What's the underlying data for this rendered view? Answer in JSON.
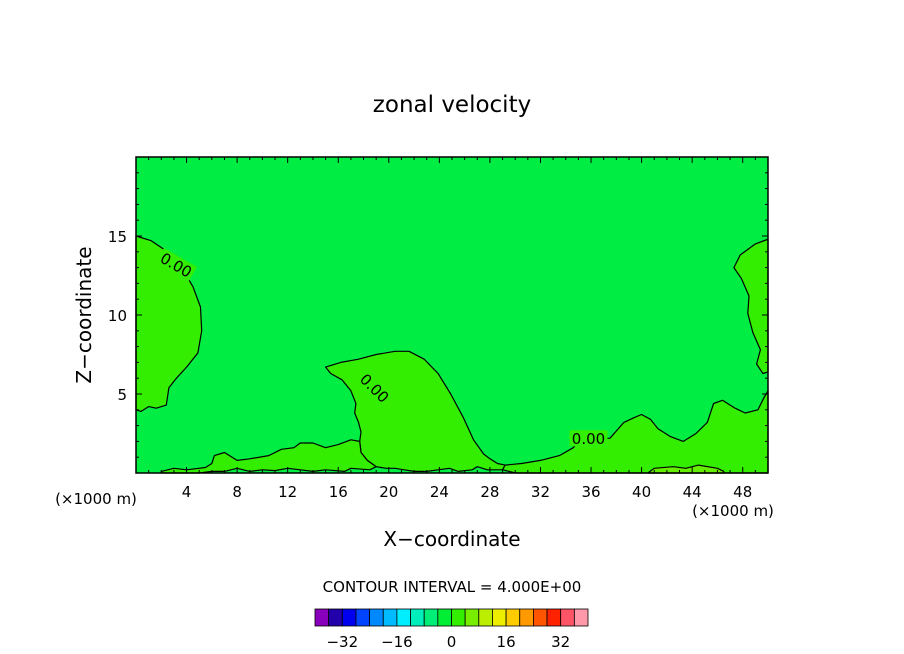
{
  "chart_data": {
    "type": "heatmap",
    "title": "zonal velocity",
    "xlabel": "X−coordinate",
    "ylabel": "Z−coordinate",
    "x_unit_left": "(×1000 m)",
    "x_unit_right": "(×1000 m)",
    "xlim": [
      0,
      50
    ],
    "ylim": [
      0,
      20
    ],
    "x_ticks": [
      4,
      8,
      12,
      16,
      20,
      24,
      28,
      32,
      36,
      40,
      44,
      48
    ],
    "y_ticks": [
      5,
      10,
      15
    ],
    "contour_interval_text": "CONTOUR INTERVAL = 4.000E+00",
    "contour_labels": [
      {
        "text": "0.00",
        "x": 3.2,
        "y": 13.2,
        "angle": 30
      },
      {
        "text": "0.00",
        "x": 18.9,
        "y": 5.4,
        "angle": 45
      },
      {
        "text": "0.00",
        "x": 35.8,
        "y": 2.2,
        "angle": 0
      }
    ],
    "background_color": "#00ee44",
    "positive_region_color": "#33ee00",
    "light_region_color": "#66ee00",
    "colorbar": {
      "levels": [
        -36,
        -32,
        -28,
        -24,
        -20,
        -16,
        -12,
        -8,
        -4,
        0,
        4,
        8,
        12,
        16,
        20,
        24,
        28,
        32,
        36
      ],
      "colors": [
        "#8800bb",
        "#2200aa",
        "#0000ee",
        "#0044ff",
        "#0088ff",
        "#00bbff",
        "#00eeff",
        "#00eebb",
        "#00ee77",
        "#00ee33",
        "#33ee00",
        "#77ee00",
        "#bbee00",
        "#eeee00",
        "#ffcc00",
        "#ff9900",
        "#ff5500",
        "#ff2200",
        "#ff5566",
        "#ff99aa"
      ],
      "tick_labels": [
        "-32",
        "-16",
        "0",
        "16",
        "32"
      ],
      "tick_values": [
        -32,
        -16,
        0,
        16,
        32
      ]
    },
    "regions": [
      {
        "name": "left positive region (0 contour)",
        "points": [
          [
            0,
            15.0
          ],
          [
            1.2,
            14.7
          ],
          [
            2.5,
            14.0
          ],
          [
            3.6,
            13.0
          ],
          [
            4.5,
            11.8
          ],
          [
            5.1,
            10.5
          ],
          [
            5.2,
            9.0
          ],
          [
            4.9,
            7.6
          ],
          [
            4.0,
            6.7
          ],
          [
            3.2,
            6.0
          ],
          [
            2.6,
            5.4
          ],
          [
            2.4,
            4.3
          ],
          [
            1.6,
            4.1
          ],
          [
            1.0,
            4.2
          ],
          [
            0.4,
            3.9
          ],
          [
            0,
            4.0
          ]
        ]
      },
      {
        "name": "central positive region (0 contour)",
        "points": [
          [
            15.0,
            6.7
          ],
          [
            16.2,
            7.0
          ],
          [
            17.6,
            7.2
          ],
          [
            19.0,
            7.5
          ],
          [
            20.5,
            7.7
          ],
          [
            21.6,
            7.7
          ],
          [
            22.8,
            7.2
          ],
          [
            23.9,
            6.3
          ],
          [
            24.9,
            5.0
          ],
          [
            25.9,
            3.5
          ],
          [
            26.7,
            2.1
          ],
          [
            27.5,
            1.2
          ],
          [
            28.0,
            0.9
          ],
          [
            28.6,
            0.6
          ],
          [
            29.2,
            0.5
          ],
          [
            29.0,
            0.2
          ],
          [
            27.8,
            0.2
          ],
          [
            27.0,
            0.4
          ],
          [
            26.6,
            0.2
          ],
          [
            25.5,
            0.1
          ],
          [
            24.8,
            0.3
          ],
          [
            23.0,
            0.1
          ],
          [
            22.0,
            0.1
          ],
          [
            21.2,
            0.2
          ],
          [
            20.5,
            0.3
          ],
          [
            19.8,
            0.3
          ],
          [
            19.0,
            0.4
          ],
          [
            18.3,
            0.8
          ],
          [
            17.8,
            1.3
          ],
          [
            17.7,
            2.0
          ],
          [
            17.8,
            2.6
          ],
          [
            17.6,
            3.2
          ],
          [
            17.3,
            3.8
          ],
          [
            17.4,
            4.4
          ],
          [
            17.0,
            5.2
          ],
          [
            16.3,
            5.9
          ],
          [
            15.4,
            6.3
          ],
          [
            15.0,
            6.7
          ]
        ]
      },
      {
        "name": "right positive region (0 contour)",
        "points": [
          [
            50,
            14.8
          ],
          [
            49.0,
            14.5
          ],
          [
            47.8,
            13.8
          ],
          [
            47.3,
            13.0
          ],
          [
            47.9,
            12.3
          ],
          [
            48.5,
            11.2
          ],
          [
            48.4,
            10.1
          ],
          [
            48.8,
            8.9
          ],
          [
            49.4,
            7.8
          ],
          [
            49.1,
            6.9
          ],
          [
            49.6,
            6.3
          ],
          [
            50,
            6.4
          ]
        ]
      },
      {
        "name": "near-surface positive strip",
        "points": [
          [
            2.0,
            0.1
          ],
          [
            3.0,
            0.3
          ],
          [
            4.0,
            0.2
          ],
          [
            5.5,
            0.35
          ],
          [
            6.0,
            0.6
          ],
          [
            6.2,
            1.1
          ],
          [
            7.0,
            1.3
          ],
          [
            8.0,
            0.8
          ],
          [
            9.0,
            0.9
          ],
          [
            10.5,
            1.1
          ],
          [
            11.5,
            1.5
          ],
          [
            12.5,
            1.6
          ],
          [
            13.0,
            1.9
          ],
          [
            14.0,
            1.9
          ],
          [
            15.0,
            1.6
          ],
          [
            16.0,
            1.8
          ],
          [
            17.0,
            2.1
          ],
          [
            17.7,
            2.0
          ],
          [
            17.8,
            1.3
          ],
          [
            18.3,
            0.8
          ],
          [
            19.0,
            0.4
          ],
          [
            18.5,
            0.2
          ],
          [
            17.0,
            0.3
          ],
          [
            16.5,
            0.1
          ],
          [
            15.0,
            0.2
          ],
          [
            14.0,
            0.1
          ],
          [
            13.0,
            0.2
          ],
          [
            12.0,
            0.3
          ],
          [
            11.0,
            0.15
          ],
          [
            10.0,
            0.2
          ],
          [
            9.0,
            0.1
          ],
          [
            8.0,
            0.3
          ],
          [
            7.0,
            0.1
          ],
          [
            6.0,
            0.1
          ],
          [
            5.0,
            0.0
          ],
          [
            2.0,
            0.0
          ]
        ]
      },
      {
        "name": "lower-right positive region",
        "points": [
          [
            29.2,
            0.5
          ],
          [
            30.5,
            0.6
          ],
          [
            32.0,
            0.8
          ],
          [
            33.5,
            1.1
          ],
          [
            34.6,
            1.6
          ],
          [
            35.0,
            2.0
          ],
          [
            36.0,
            2.1
          ],
          [
            37.5,
            2.2
          ],
          [
            38.6,
            3.2
          ],
          [
            39.4,
            3.5
          ],
          [
            40.0,
            3.7
          ],
          [
            40.7,
            3.4
          ],
          [
            41.3,
            2.8
          ],
          [
            42.3,
            2.3
          ],
          [
            43.3,
            2.0
          ],
          [
            44.3,
            2.5
          ],
          [
            45.2,
            3.2
          ],
          [
            45.7,
            4.4
          ],
          [
            46.4,
            4.6
          ],
          [
            47.4,
            4.1
          ],
          [
            48.2,
            3.8
          ],
          [
            49.2,
            4.0
          ],
          [
            49.7,
            4.8
          ],
          [
            50,
            5.2
          ],
          [
            50,
            0.0
          ],
          [
            30.0,
            0.0
          ],
          [
            29.0,
            0.2
          ]
        ]
      },
      {
        "name": "light surface patch",
        "points": [
          [
            40.5,
            0.0
          ],
          [
            41.0,
            0.3
          ],
          [
            42.5,
            0.4
          ],
          [
            43.5,
            0.3
          ],
          [
            44.5,
            0.5
          ],
          [
            46.0,
            0.3
          ],
          [
            46.5,
            0.1
          ],
          [
            46.5,
            0.0
          ]
        ]
      }
    ]
  }
}
